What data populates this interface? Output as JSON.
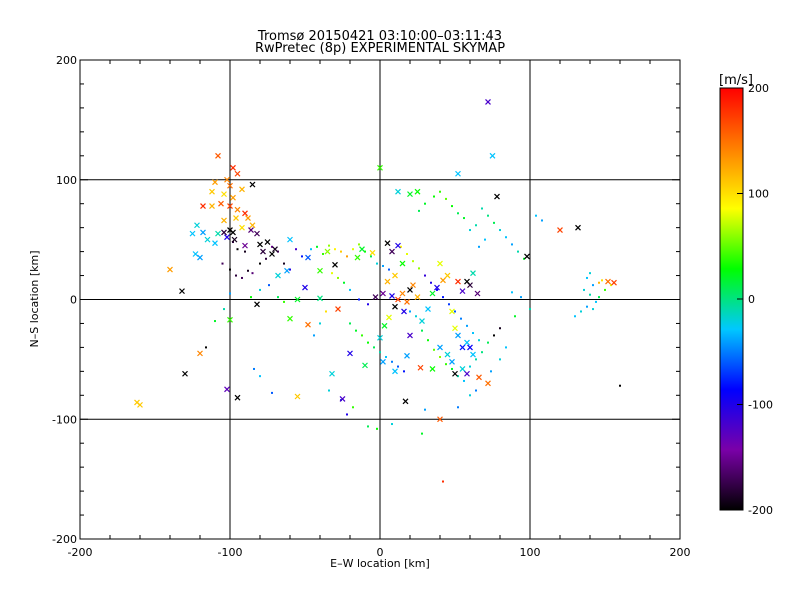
{
  "chart_data": {
    "type": "scatter",
    "title": "Tromsø 20150421 03:10:00–03:11:43",
    "subtitle": "RwPretec (8p) EXPERIMENTAL SKYMAP",
    "xlabel": "E–W location [km]",
    "ylabel": "N–S location [km]",
    "xlim": [
      -200,
      200
    ],
    "ylim": [
      -200,
      200
    ],
    "xticks": [
      -200,
      -100,
      0,
      100,
      200
    ],
    "yticks": [
      -200,
      -100,
      0,
      100,
      200
    ],
    "grid": true,
    "colorbar": {
      "label": "[m/s]",
      "range": [
        -200,
        200
      ],
      "ticks": [
        200,
        100,
        0,
        -100,
        -200
      ],
      "colors": [
        "#000000",
        "#7a00a8",
        "#0000ff",
        "#00c8ff",
        "#00ff00",
        "#ffff00",
        "#ff8000",
        "#ff0000"
      ]
    },
    "crosses": [
      [
        -108,
        120,
        160
      ],
      [
        -98,
        110,
        180
      ],
      [
        -95,
        105,
        170
      ],
      [
        -102,
        100,
        140
      ],
      [
        -110,
        98,
        130
      ],
      [
        -100,
        95,
        150
      ],
      [
        -92,
        92,
        120
      ],
      [
        -85,
        96,
        -200
      ],
      [
        -112,
        90,
        110
      ],
      [
        -104,
        88,
        100
      ],
      [
        -98,
        85,
        130
      ],
      [
        -118,
        78,
        180
      ],
      [
        -112,
        78,
        120
      ],
      [
        -106,
        80,
        160
      ],
      [
        -100,
        78,
        170
      ],
      [
        -95,
        75,
        140
      ],
      [
        -90,
        72,
        180
      ],
      [
        -88,
        68,
        130
      ],
      [
        -96,
        68,
        110
      ],
      [
        -104,
        66,
        120
      ],
      [
        -85,
        62,
        120
      ],
      [
        -92,
        60,
        100
      ],
      [
        -100,
        58,
        -200
      ],
      [
        -104,
        56,
        -180
      ],
      [
        -98,
        56,
        -200
      ],
      [
        -86,
        58,
        -160
      ],
      [
        -82,
        55,
        -170
      ],
      [
        -122,
        62,
        -20
      ],
      [
        -118,
        56,
        -40
      ],
      [
        -125,
        55,
        -30
      ],
      [
        -115,
        50,
        -20
      ],
      [
        -110,
        47,
        -30
      ],
      [
        -108,
        55,
        -10
      ],
      [
        -102,
        52,
        -100
      ],
      [
        -97,
        50,
        -190
      ],
      [
        -90,
        45,
        -150
      ],
      [
        -80,
        46,
        -200
      ],
      [
        -75,
        48,
        -200
      ],
      [
        -70,
        42,
        -190
      ],
      [
        -78,
        40,
        -180
      ],
      [
        -72,
        38,
        -200
      ],
      [
        -123,
        38,
        -30
      ],
      [
        -120,
        35,
        -40
      ],
      [
        -132,
        7,
        -200
      ],
      [
        -82,
        -4,
        -200
      ],
      [
        -120,
        -45,
        140
      ],
      [
        -102,
        -75,
        -130
      ],
      [
        -95,
        -82,
        -200
      ],
      [
        -162,
        -86,
        110
      ],
      [
        -55,
        -81,
        110
      ],
      [
        -48,
        -21,
        150
      ],
      [
        -40,
        1,
        0
      ],
      [
        -30,
        29,
        -200
      ],
      [
        -28,
        -8,
        170
      ],
      [
        -25,
        -83,
        -120
      ],
      [
        -20,
        -45,
        -100
      ],
      [
        -10,
        -55,
        10
      ],
      [
        -15,
        35,
        40
      ],
      [
        -5,
        39,
        100
      ],
      [
        -12,
        42,
        20
      ],
      [
        5,
        47,
        -200
      ],
      [
        8,
        40,
        -170
      ],
      [
        12,
        45,
        -100
      ],
      [
        15,
        30,
        30
      ],
      [
        10,
        20,
        110
      ],
      [
        5,
        15,
        120
      ],
      [
        2,
        5,
        -150
      ],
      [
        -3,
        2,
        -170
      ],
      [
        8,
        3,
        -100
      ],
      [
        12,
        0,
        170
      ],
      [
        15,
        5,
        140
      ],
      [
        18,
        -2,
        150
      ],
      [
        20,
        8,
        -200
      ],
      [
        22,
        12,
        140
      ],
      [
        25,
        2,
        120
      ],
      [
        16,
        -10,
        -100
      ],
      [
        10,
        -6,
        -200
      ],
      [
        6,
        -15,
        80
      ],
      [
        3,
        -22,
        20
      ],
      [
        0,
        -32,
        -20
      ],
      [
        20,
        -30,
        -120
      ],
      [
        28,
        -18,
        -20
      ],
      [
        32,
        -8,
        -30
      ],
      [
        35,
        5,
        20
      ],
      [
        38,
        10,
        -100
      ],
      [
        40,
        30,
        80
      ],
      [
        42,
        16,
        130
      ],
      [
        45,
        20,
        110
      ],
      [
        48,
        -10,
        80
      ],
      [
        50,
        -24,
        80
      ],
      [
        52,
        -30,
        -40
      ],
      [
        55,
        -40,
        -80
      ],
      [
        58,
        -36,
        -30
      ],
      [
        60,
        -40,
        -90
      ],
      [
        62,
        -46,
        -30
      ],
      [
        55,
        -58,
        -20
      ],
      [
        48,
        -52,
        -40
      ],
      [
        45,
        -46,
        -20
      ],
      [
        40,
        -40,
        -40
      ],
      [
        50,
        -62,
        -200
      ],
      [
        58,
        -62,
        -120
      ],
      [
        66,
        -65,
        160
      ],
      [
        72,
        -70,
        150
      ],
      [
        60,
        12,
        -180
      ],
      [
        65,
        5,
        -160
      ],
      [
        58,
        15,
        -200
      ],
      [
        52,
        15,
        180
      ],
      [
        55,
        7,
        -120
      ],
      [
        62,
        22,
        -10
      ],
      [
        35,
        -58,
        30
      ],
      [
        27,
        -57,
        170
      ],
      [
        18,
        -47,
        -40
      ],
      [
        17,
        -85,
        -200
      ],
      [
        72,
        165,
        -120
      ],
      [
        75,
        120,
        -30
      ],
      [
        78,
        86,
        -200
      ],
      [
        98,
        36,
        -200
      ],
      [
        120,
        58,
        170
      ],
      [
        132,
        60,
        -200
      ],
      [
        52,
        105,
        -30
      ],
      [
        12,
        90,
        -20
      ],
      [
        20,
        88,
        20
      ],
      [
        25,
        90,
        30
      ],
      [
        10,
        -60,
        -30
      ],
      [
        2,
        -52,
        -40
      ],
      [
        -32,
        -62,
        -20
      ],
      [
        -60,
        -16,
        40
      ],
      [
        -55,
        0,
        20
      ],
      [
        -50,
        10,
        -100
      ],
      [
        -48,
        35,
        -60
      ],
      [
        -40,
        24,
        40
      ],
      [
        -35,
        40,
        60
      ],
      [
        -62,
        24,
        -40
      ],
      [
        -68,
        20,
        -20
      ],
      [
        -60,
        50,
        -30
      ],
      [
        -100,
        -17,
        40
      ],
      [
        -130,
        -62,
        -200
      ],
      [
        -140,
        25,
        130
      ],
      [
        -160,
        -88,
        110
      ],
      [
        0,
        110,
        40
      ],
      [
        40,
        -100,
        160
      ],
      [
        156,
        14,
        170
      ],
      [
        152,
        15,
        150
      ]
    ],
    "dots": [
      [
        -98,
        48,
        -180
      ],
      [
        -95,
        42,
        -200
      ],
      [
        -90,
        40,
        -190
      ],
      [
        -105,
        30,
        -170
      ],
      [
        -100,
        25,
        -200
      ],
      [
        -96,
        20,
        -180
      ],
      [
        -92,
        18,
        -170
      ],
      [
        -88,
        24,
        -190
      ],
      [
        -85,
        22,
        -160
      ],
      [
        -80,
        30,
        -200
      ],
      [
        -76,
        34,
        -180
      ],
      [
        -72,
        44,
        -150
      ],
      [
        -68,
        40,
        -170
      ],
      [
        -64,
        30,
        -190
      ],
      [
        -60,
        25,
        -100
      ],
      [
        -56,
        42,
        -120
      ],
      [
        -52,
        36,
        -80
      ],
      [
        -46,
        42,
        -30
      ],
      [
        -42,
        44,
        20
      ],
      [
        -38,
        38,
        40
      ],
      [
        -34,
        45,
        60
      ],
      [
        -30,
        42,
        90
      ],
      [
        -26,
        40,
        110
      ],
      [
        -22,
        36,
        130
      ],
      [
        -18,
        42,
        80
      ],
      [
        -14,
        46,
        60
      ],
      [
        -10,
        40,
        30
      ],
      [
        -6,
        36,
        10
      ],
      [
        -2,
        30,
        -20
      ],
      [
        2,
        28,
        -40
      ],
      [
        6,
        25,
        -60
      ],
      [
        -8,
        -4,
        -100
      ],
      [
        -14,
        0,
        -80
      ],
      [
        -20,
        8,
        -30
      ],
      [
        -24,
        14,
        20
      ],
      [
        -28,
        18,
        60
      ],
      [
        -32,
        22,
        80
      ],
      [
        -36,
        -10,
        100
      ],
      [
        -40,
        -20,
        -20
      ],
      [
        -44,
        -30,
        -40
      ],
      [
        -20,
        -20,
        10
      ],
      [
        -16,
        -26,
        20
      ],
      [
        -12,
        -30,
        40
      ],
      [
        -8,
        -36,
        30
      ],
      [
        -4,
        -40,
        10
      ],
      [
        0,
        -44,
        -10
      ],
      [
        4,
        -48,
        -30
      ],
      [
        8,
        -52,
        -50
      ],
      [
        12,
        -56,
        -60
      ],
      [
        16,
        -60,
        -80
      ],
      [
        20,
        -10,
        -40
      ],
      [
        24,
        -14,
        -20
      ],
      [
        28,
        -26,
        10
      ],
      [
        32,
        -34,
        30
      ],
      [
        36,
        -42,
        50
      ],
      [
        40,
        -48,
        60
      ],
      [
        44,
        -54,
        40
      ],
      [
        48,
        -58,
        20
      ],
      [
        52,
        -64,
        -10
      ],
      [
        56,
        -68,
        -30
      ],
      [
        60,
        -56,
        -20
      ],
      [
        64,
        -50,
        -10
      ],
      [
        68,
        -44,
        0
      ],
      [
        72,
        -36,
        10
      ],
      [
        76,
        -30,
        -200
      ],
      [
        80,
        -24,
        -190
      ],
      [
        66,
        -34,
        -20
      ],
      [
        62,
        -28,
        -30
      ],
      [
        58,
        -22,
        -40
      ],
      [
        54,
        -16,
        -50
      ],
      [
        50,
        -10,
        -60
      ],
      [
        46,
        -4,
        -70
      ],
      [
        42,
        2,
        -80
      ],
      [
        38,
        8,
        -90
      ],
      [
        34,
        14,
        -100
      ],
      [
        30,
        20,
        -110
      ],
      [
        26,
        26,
        60
      ],
      [
        22,
        32,
        70
      ],
      [
        18,
        38,
        80
      ],
      [
        14,
        44,
        90
      ],
      [
        60,
        58,
        -20
      ],
      [
        64,
        62,
        -10
      ],
      [
        56,
        68,
        20
      ],
      [
        52,
        72,
        10
      ],
      [
        48,
        78,
        30
      ],
      [
        44,
        84,
        50
      ],
      [
        40,
        90,
        40
      ],
      [
        36,
        86,
        30
      ],
      [
        30,
        80,
        20
      ],
      [
        26,
        74,
        10
      ],
      [
        68,
        76,
        -10
      ],
      [
        72,
        70,
        0
      ],
      [
        76,
        64,
        10
      ],
      [
        80,
        58,
        -20
      ],
      [
        84,
        52,
        -30
      ],
      [
        88,
        46,
        -40
      ],
      [
        92,
        40,
        -10
      ],
      [
        96,
        34,
        20
      ],
      [
        70,
        50,
        -30
      ],
      [
        66,
        44,
        -40
      ],
      [
        104,
        70,
        -30
      ],
      [
        108,
        66,
        -40
      ],
      [
        140,
        22,
        -20
      ],
      [
        138,
        18,
        -30
      ],
      [
        142,
        12,
        -40
      ],
      [
        136,
        8,
        -20
      ],
      [
        140,
        4,
        -10
      ],
      [
        144,
        -2,
        -30
      ],
      [
        138,
        -6,
        -40
      ],
      [
        134,
        -10,
        -20
      ],
      [
        130,
        -14,
        -30
      ],
      [
        142,
        -8,
        -20
      ],
      [
        146,
        2,
        10
      ],
      [
        150,
        8,
        40
      ],
      [
        154,
        12,
        80
      ],
      [
        148,
        16,
        100
      ],
      [
        146,
        14,
        120
      ],
      [
        160,
        -72,
        -200
      ],
      [
        52,
        -90,
        -50
      ],
      [
        30,
        -92,
        -40
      ],
      [
        8,
        -104,
        -20
      ],
      [
        -2,
        -108,
        30
      ],
      [
        -8,
        -106,
        10
      ],
      [
        28,
        -112,
        20
      ],
      [
        42,
        -152,
        180
      ],
      [
        -18,
        -90,
        40
      ],
      [
        -22,
        -96,
        -100
      ],
      [
        -26,
        -84,
        -70
      ],
      [
        -34,
        -76,
        -20
      ],
      [
        -72,
        -78,
        -60
      ],
      [
        -80,
        -64,
        -30
      ],
      [
        -84,
        -58,
        -50
      ],
      [
        -110,
        -18,
        20
      ],
      [
        -116,
        -40,
        -200
      ],
      [
        -100,
        5,
        -40
      ],
      [
        -104,
        -8,
        -10
      ],
      [
        -86,
        2,
        30
      ],
      [
        -80,
        8,
        -20
      ],
      [
        -74,
        12,
        -60
      ],
      [
        -68,
        2,
        10
      ],
      [
        -64,
        -2,
        40
      ],
      [
        100,
        -8,
        -10
      ],
      [
        90,
        -14,
        20
      ],
      [
        84,
        -40,
        -30
      ],
      [
        80,
        -50,
        -20
      ],
      [
        74,
        -60,
        -40
      ],
      [
        64,
        -76,
        -50
      ],
      [
        60,
        -80,
        -20
      ],
      [
        88,
        6,
        -30
      ],
      [
        94,
        2,
        -40
      ]
    ]
  }
}
